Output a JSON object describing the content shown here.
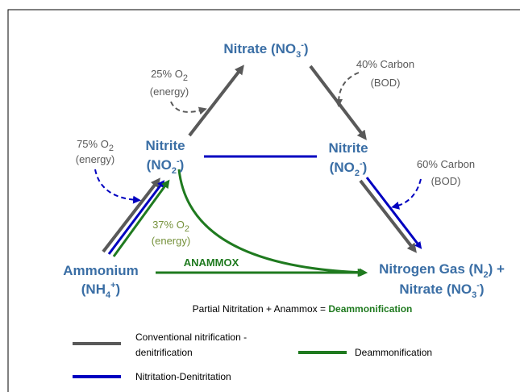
{
  "nodes": {
    "nitrate": {
      "text": "Nitrate (NO",
      "sub": "3",
      "sup": "-",
      "close": ")"
    },
    "nitrite_left": {
      "name": "Nitrite",
      "text": "(NO",
      "sub": "2",
      "sup": "-",
      "close": ")"
    },
    "nitrite_right": {
      "name": "Nitrite",
      "text": "(NO",
      "sub": "2",
      "sup": "-",
      "close": ")"
    },
    "ammonium": {
      "name": "Ammonium",
      "text": "(NH",
      "sub": "4",
      "sup": "+",
      "close": ")"
    },
    "nitrogen": {
      "text": "Nitrogen Gas (N",
      "sub": "2",
      "close": ") +",
      "text2": "Nitrate (NO",
      "sub2": "3",
      "sup2": "-",
      "close2": ")"
    }
  },
  "annotations": {
    "o2_25": {
      "text": "25% O",
      "sub": "2",
      "line2": "(energy)"
    },
    "carbon_40": {
      "text": "40% Carbon",
      "line2": "(BOD)"
    },
    "o2_75": {
      "text": "75% O",
      "sub": "2",
      "line2": "(energy)"
    },
    "carbon_60": {
      "text": "60% Carbon",
      "line2": "(BOD)"
    },
    "o2_37": {
      "text": "37% O",
      "sub": "2",
      "line2": "(energy)"
    },
    "anammox": "ANAMMOX"
  },
  "equation": {
    "text": "Partial Nitritation + Anammox = ",
    "highlight": "Deammonification"
  },
  "legend": {
    "conventional": [
      "Conventional nitrification -",
      "denitrification"
    ],
    "nitritation": "Nitritation-Denitritation",
    "deammonification": "Deammonification"
  }
}
